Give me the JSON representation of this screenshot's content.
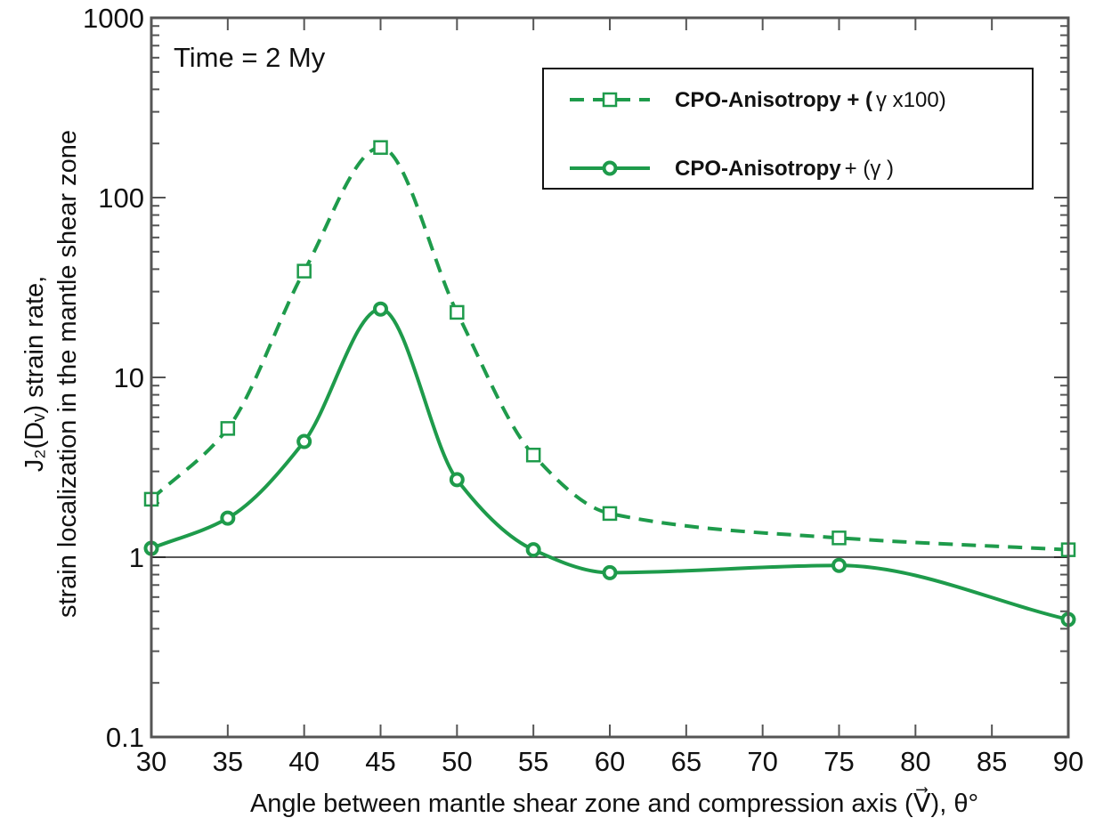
{
  "colors": {
    "series": "#1e9b4b",
    "axis": "#555555",
    "reference": "#222222"
  },
  "chart_data": {
    "type": "line",
    "title": "",
    "annotation": "Time = 2 My",
    "xlabel": "Angle between mantle shear zone and compression axis (V⃗), θ°",
    "ylabel_line1": "J₂(Dᵥ) strain rate,",
    "ylabel_line2": "strain localization in the mantle shear zone",
    "x_range": [
      30,
      90
    ],
    "y_range": [
      0.1,
      1000
    ],
    "y_scale": "log",
    "x_ticks": [
      30,
      35,
      40,
      45,
      50,
      55,
      60,
      65,
      70,
      75,
      80,
      85,
      90
    ],
    "x_tick_labels": [
      "30",
      "35",
      "40",
      "45",
      "50",
      "55",
      "60",
      "65",
      "70",
      "75",
      "80",
      "85",
      "90"
    ],
    "y_ticks": [
      0.1,
      1,
      10,
      100,
      1000
    ],
    "y_tick_labels": [
      "0.1",
      "1",
      "10",
      "100",
      "1000"
    ],
    "reference_line_y": 1,
    "grid": false,
    "legend_position": "top-right",
    "series": [
      {
        "name_bold": "CPO-Anisotropy + (",
        "name_symbol": "γ",
        "name_rest": " x100)",
        "style": "dashed",
        "marker": "square",
        "x": [
          30,
          35,
          40,
          45,
          50,
          55,
          60,
          75,
          90
        ],
        "y": [
          2.1,
          5.2,
          39,
          190,
          23,
          3.7,
          1.75,
          1.28,
          1.1
        ]
      },
      {
        "name_bold": "CPO-Anisotropy",
        "name_symbol": "+ (γ )",
        "name_rest": "",
        "style": "solid",
        "marker": "circle",
        "x": [
          30,
          35,
          40,
          45,
          50,
          55,
          60,
          75,
          90
        ],
        "y": [
          1.12,
          1.65,
          4.4,
          24,
          2.7,
          1.1,
          0.82,
          0.9,
          0.45
        ]
      }
    ]
  }
}
